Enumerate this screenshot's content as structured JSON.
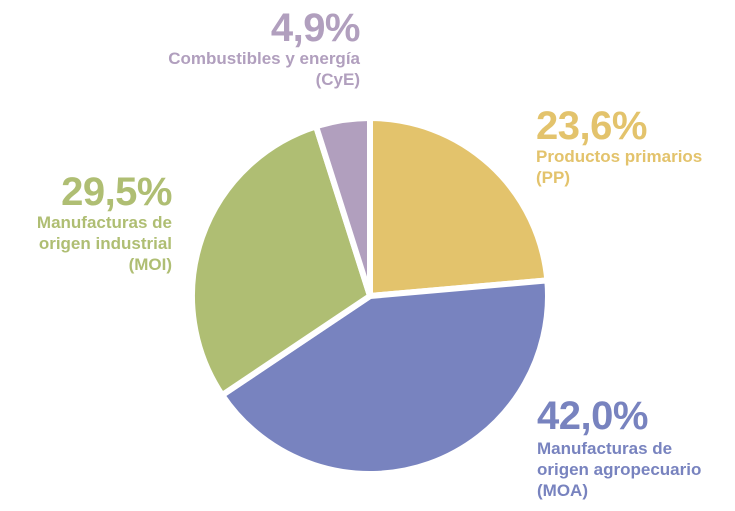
{
  "chart_data": {
    "type": "pie",
    "title": "",
    "slices": [
      {
        "key": "pp",
        "percent_label": "23,6%",
        "value": 23.6,
        "name_lines": [
          "Productos primarios",
          "(PP)"
        ],
        "color": "#E3C36C"
      },
      {
        "key": "moa",
        "percent_label": "42,0%",
        "value": 42.0,
        "name_lines": [
          "Manufacturas de",
          "origen agropecuario",
          "(MOA)"
        ],
        "color": "#7883BF"
      },
      {
        "key": "moi",
        "percent_label": "29,5%",
        "value": 29.5,
        "name_lines": [
          "Manufacturas de",
          "origen industrial",
          "(MOI)"
        ],
        "color": "#AFBE73"
      },
      {
        "key": "cye",
        "percent_label": "4,9%",
        "value": 4.9,
        "name_lines": [
          "Combustibles y energía",
          "(CyE)"
        ],
        "color": "#B19FBE"
      }
    ],
    "start": "12 o'clock",
    "direction": "clockwise",
    "legend": "none"
  }
}
